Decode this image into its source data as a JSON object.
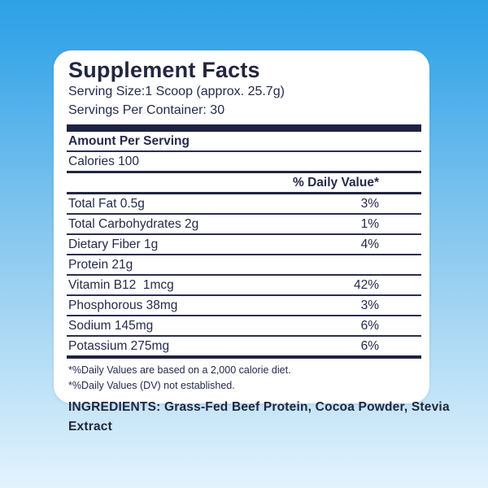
{
  "colors": {
    "navy_text": "#252a4c",
    "bar_navy": "#1e2342",
    "card_bg": "#ffffff",
    "background_gradient_top": "#2ea1e5",
    "background_gradient_bottom": "#e3f3fd"
  },
  "panel": {
    "title": "Supplement Facts",
    "serving_size": "Serving Size:1 Scoop (approx. 25.7g)",
    "servings_per_container": "Servings Per Container: 30",
    "amount_per_serving": "Amount Per Serving",
    "calories": "Calories 100",
    "daily_value_header": "% Daily Value*",
    "rows": [
      {
        "label": "Total Fat 0.5g",
        "value": "3%"
      },
      {
        "label": "Total Carbohydrates 2g",
        "value": "1%"
      },
      {
        "label": "Dietary Fiber 1g",
        "value": "4%"
      },
      {
        "label": "Protein 21g",
        "value": ""
      },
      {
        "label": "Vitamin B12  1mcg",
        "value": "42%"
      },
      {
        "label": "Phosphorous 38mg",
        "value": "3%"
      },
      {
        "label": "Sodium 145mg",
        "value": "6%"
      },
      {
        "label": "Potassium 275mg",
        "value": "6%"
      }
    ],
    "footnotes": [
      "*%Daily Values are based on a 2,000 calorie diet.",
      "*%Daily Values (DV) not established."
    ]
  },
  "ingredients": {
    "text": "INGREDIENTS: Grass-Fed Beef Protein, Cocoa Powder, Stevia Extract"
  }
}
